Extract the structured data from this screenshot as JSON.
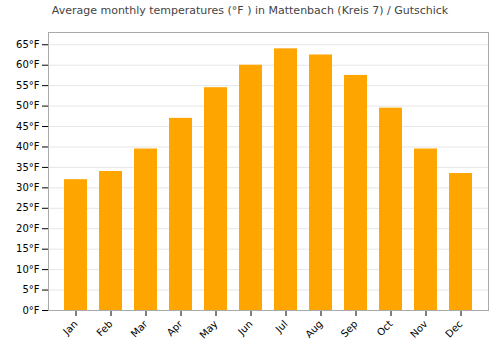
{
  "chart_data": {
    "type": "bar",
    "title": "Average monthly temperatures (°F ) in Mattenbach (Kreis 7) / Gutschick",
    "categories": [
      "Jan",
      "Feb",
      "Mar",
      "Apr",
      "May",
      "Jun",
      "Jul",
      "Aug",
      "Sep",
      "Oct",
      "Nov",
      "Dec"
    ],
    "values": [
      32,
      34,
      39.5,
      47,
      54.5,
      60,
      64,
      62.5,
      57.5,
      49.5,
      39.5,
      33.5
    ],
    "color": "#FFA500",
    "ylim": [
      0,
      68
    ],
    "yticks": [
      {
        "value": 0,
        "label": "0°F"
      },
      {
        "value": 5,
        "label": "5°F"
      },
      {
        "value": 10,
        "label": "10°F"
      },
      {
        "value": 15,
        "label": "15°F"
      },
      {
        "value": 20,
        "label": "20°F"
      },
      {
        "value": 25,
        "label": "25°F"
      },
      {
        "value": 30,
        "label": "30°F"
      },
      {
        "value": 35,
        "label": "35°F"
      },
      {
        "value": 40,
        "label": "40°F"
      },
      {
        "value": 45,
        "label": "45°F"
      },
      {
        "value": 50,
        "label": "50°F"
      },
      {
        "value": 55,
        "label": "55°F"
      },
      {
        "value": 60,
        "label": "60°F"
      },
      {
        "value": 65,
        "label": "65°F"
      }
    ],
    "grid": true
  }
}
